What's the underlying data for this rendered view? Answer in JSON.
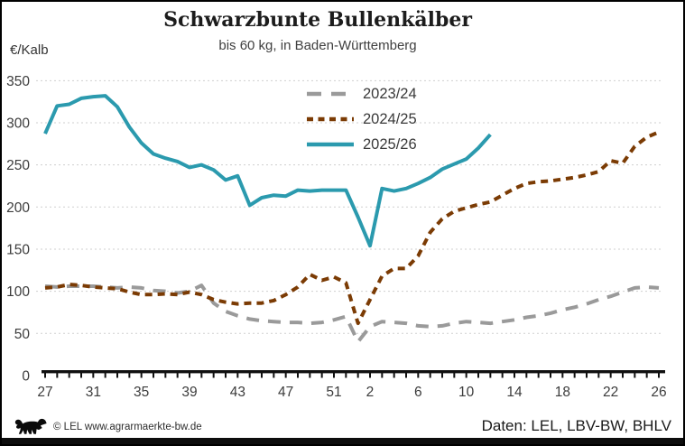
{
  "footer": {
    "copyright": "© LEL www.agrarmaerkte-bw.de",
    "source": "Daten: LEL, LBV-BW, BHLV"
  },
  "chart_data": {
    "type": "line",
    "title": "Schwarzbunte Bullenkälber",
    "subtitle": "bis 60 kg, in Baden-Württemberg",
    "ylabel": "€/Kalb",
    "ylim": [
      0,
      350
    ],
    "y_ticks": [
      0,
      50,
      100,
      150,
      200,
      250,
      300,
      350
    ],
    "grid": "horizontal-dashed",
    "legend_position": "top-center-inside",
    "weeks": [
      "27",
      "28",
      "29",
      "30",
      "31",
      "32",
      "33",
      "34",
      "35",
      "36",
      "37",
      "38",
      "39",
      "40",
      "41",
      "42",
      "43",
      "44",
      "45",
      "46",
      "47",
      "48",
      "49",
      "50",
      "51",
      "52",
      "1",
      "2",
      "3",
      "4",
      "5",
      "6",
      "7",
      "8",
      "9",
      "10",
      "11",
      "12",
      "13",
      "14",
      "15",
      "16",
      "17",
      "18",
      "19",
      "20",
      "21",
      "22",
      "23",
      "24",
      "25",
      "26"
    ],
    "x_axis": {
      "tick_labels": [
        "27",
        "31",
        "35",
        "39",
        "43",
        "47",
        "51",
        "2",
        "6",
        "10",
        "14",
        "18",
        "22",
        "26"
      ]
    },
    "series": [
      {
        "name": "2023/24",
        "color": "#9a9a9a",
        "style": "dashed-long",
        "values": [
          106,
          105,
          106,
          106,
          106,
          105,
          104,
          105,
          104,
          101,
          100,
          98,
          100,
          107,
          86,
          76,
          71,
          67,
          65,
          64,
          63,
          63,
          62,
          63,
          66,
          70,
          40,
          58,
          64,
          63,
          62,
          59,
          58,
          59,
          62,
          64,
          63,
          62,
          64,
          66,
          69,
          71,
          74,
          78,
          81,
          85,
          90,
          94,
          99,
          104,
          105,
          104
        ]
      },
      {
        "name": "2024/25",
        "color": "#7b3b04",
        "style": "dashed-short",
        "values": [
          104,
          105,
          108,
          107,
          105,
          104,
          103,
          99,
          96,
          96,
          97,
          96,
          99,
          96,
          90,
          87,
          85,
          86,
          86,
          89,
          96,
          105,
          120,
          113,
          117,
          110,
          62,
          90,
          118,
          127,
          127,
          142,
          170,
          186,
          195,
          199,
          203,
          206,
          214,
          222,
          228,
          230,
          231,
          233,
          235,
          238,
          242,
          255,
          252,
          272,
          283,
          289
        ]
      },
      {
        "name": "2025/26",
        "color": "#2b9aae",
        "style": "solid",
        "values": [
          287,
          320,
          322,
          329,
          331,
          332,
          319,
          295,
          276,
          263,
          258,
          254,
          247,
          250,
          244,
          232,
          237,
          202,
          211,
          214,
          213,
          220,
          219,
          220,
          220,
          220,
          188,
          154,
          222,
          219,
          222,
          228,
          235,
          245,
          251,
          257,
          270,
          286
        ]
      }
    ]
  }
}
